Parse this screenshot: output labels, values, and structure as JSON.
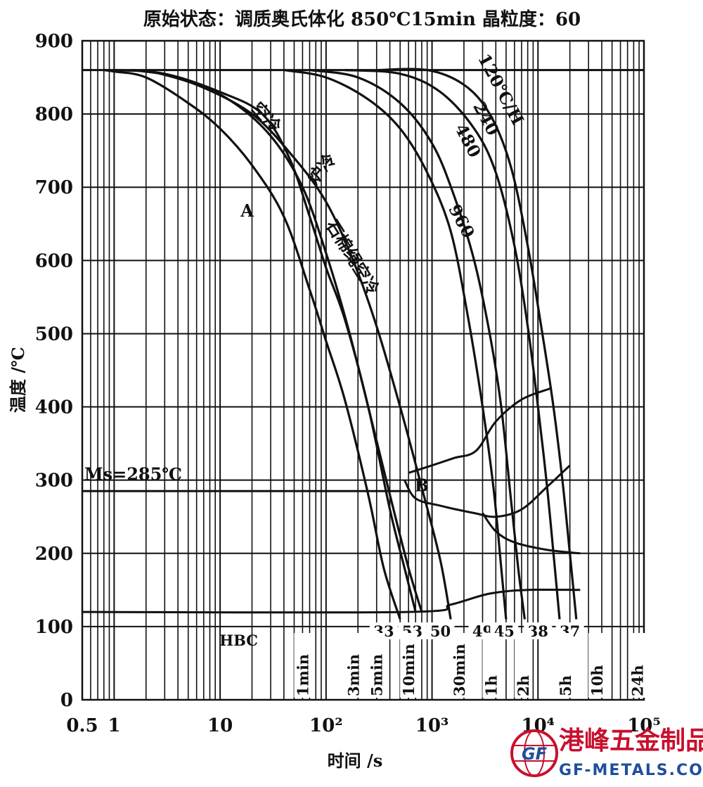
{
  "chart_data": {
    "type": "line",
    "title": "原始状态：调质奥氏体化 850℃15min 晶粒度：60",
    "xlabel": "时间 /s",
    "ylabel": "温度 /℃",
    "x_scale": "log",
    "xlim": [
      0.5,
      100000
    ],
    "ylim": [
      0,
      900
    ],
    "x_ticks": [
      {
        "value": 0.5,
        "label": "0.5"
      },
      {
        "value": 1,
        "label": "1"
      },
      {
        "value": 10,
        "label": "10"
      },
      {
        "value": 100,
        "label": "10²"
      },
      {
        "value": 1000,
        "label": "10³"
      },
      {
        "value": 10000,
        "label": "10⁴"
      },
      {
        "value": 100000,
        "label": "10⁵"
      }
    ],
    "y_ticks": [
      0,
      100,
      200,
      300,
      400,
      500,
      600,
      700,
      800,
      900
    ],
    "grid": true,
    "ms_label": "Ms=285℃",
    "ms_value": 285,
    "austenitize_line": 860,
    "region_labels": [
      {
        "text": "A",
        "x": 18,
        "y": 660
      },
      {
        "text": "B",
        "x": 800,
        "y": 285
      }
    ],
    "curve_labels": [
      {
        "text": "空冷",
        "x": 25,
        "y": 790,
        "rotate": 48
      },
      {
        "text": "炉冷",
        "x": 100,
        "y": 720,
        "rotate": -50
      },
      {
        "text": "石棉绳空冷",
        "x": 160,
        "y": 600,
        "rotate": 58
      },
      {
        "text": "960",
        "x": 1700,
        "y": 650,
        "rotate": 62
      },
      {
        "text": "480",
        "x": 1950,
        "y": 760,
        "rotate": 62
      },
      {
        "text": "240",
        "x": 2900,
        "y": 790,
        "rotate": 62
      },
      {
        "text": "120℃/H",
        "x": 4000,
        "y": 830,
        "rotate": 62
      }
    ],
    "series": [
      {
        "values": [
          [
            0.8,
            860
          ],
          [
            1,
            858
          ],
          [
            2,
            850
          ],
          [
            5,
            815
          ],
          [
            10,
            780
          ],
          [
            20,
            730
          ],
          [
            40,
            660
          ],
          [
            70,
            560
          ],
          [
            100,
            490
          ],
          [
            150,
            410
          ],
          [
            250,
            280
          ],
          [
            350,
            180
          ],
          [
            500,
            110
          ]
        ]
      },
      {
        "values": [
          [
            1,
            860
          ],
          [
            3,
            855
          ],
          [
            10,
            830
          ],
          [
            25,
            800
          ],
          [
            45,
            740
          ],
          [
            70,
            660
          ],
          [
            100,
            590
          ],
          [
            150,
            520
          ],
          [
            250,
            400
          ],
          [
            400,
            260
          ],
          [
            550,
            180
          ],
          [
            700,
            120
          ]
        ]
      },
      {
        "values": [
          [
            1.5,
            860
          ],
          [
            4,
            850
          ],
          [
            12,
            820
          ],
          [
            30,
            770
          ],
          [
            60,
            700
          ],
          [
            100,
            610
          ],
          [
            160,
            510
          ],
          [
            250,
            400
          ],
          [
            400,
            280
          ],
          [
            600,
            180
          ],
          [
            800,
            120
          ]
        ]
      },
      {
        "values": [
          [
            2,
            860
          ],
          [
            6,
            840
          ],
          [
            20,
            800
          ],
          [
            50,
            740
          ],
          [
            100,
            680
          ],
          [
            180,
            600
          ],
          [
            300,
            510
          ],
          [
            500,
            400
          ],
          [
            800,
            290
          ],
          [
            1200,
            190
          ],
          [
            1500,
            110
          ]
        ]
      },
      {
        "values": [
          [
            40,
            860
          ],
          [
            100,
            850
          ],
          [
            250,
            820
          ],
          [
            500,
            780
          ],
          [
            900,
            720
          ],
          [
            1500,
            640
          ],
          [
            2200,
            520
          ],
          [
            3000,
            400
          ],
          [
            3800,
            290
          ],
          [
            4500,
            180
          ],
          [
            5000,
            110
          ]
        ]
      },
      {
        "values": [
          [
            70,
            860
          ],
          [
            200,
            850
          ],
          [
            500,
            815
          ],
          [
            1000,
            760
          ],
          [
            1600,
            690
          ],
          [
            2500,
            600
          ],
          [
            3500,
            500
          ],
          [
            4500,
            400
          ],
          [
            5500,
            280
          ],
          [
            6500,
            180
          ],
          [
            7500,
            110
          ]
        ]
      },
      {
        "values": [
          [
            150,
            860
          ],
          [
            500,
            855
          ],
          [
            1200,
            830
          ],
          [
            2500,
            780
          ],
          [
            4000,
            720
          ],
          [
            6000,
            620
          ],
          [
            8000,
            510
          ],
          [
            10000,
            400
          ],
          [
            12000,
            300
          ],
          [
            14000,
            200
          ],
          [
            16000,
            110
          ]
        ]
      },
      {
        "values": [
          [
            300,
            860
          ],
          [
            900,
            860
          ],
          [
            2000,
            840
          ],
          [
            3500,
            800
          ],
          [
            5500,
            730
          ],
          [
            8000,
            620
          ],
          [
            11000,
            500
          ],
          [
            14000,
            400
          ],
          [
            17000,
            300
          ],
          [
            20000,
            200
          ],
          [
            23000,
            110
          ]
        ]
      }
    ],
    "transformation_lines": [
      {
        "values": [
          [
            600,
            310
          ],
          [
            900,
            318
          ],
          [
            1600,
            330
          ],
          [
            2600,
            340
          ],
          [
            4000,
            380
          ],
          [
            7000,
            410
          ],
          [
            13000,
            425
          ]
        ]
      },
      {
        "values": [
          [
            550,
            300
          ],
          [
            700,
            275
          ],
          [
            1200,
            265
          ],
          [
            2500,
            255
          ],
          [
            4000,
            250
          ],
          [
            7000,
            260
          ],
          [
            12000,
            290
          ],
          [
            20000,
            320
          ]
        ]
      },
      {
        "values": [
          [
            3000,
            255
          ],
          [
            4000,
            230
          ],
          [
            6000,
            215
          ],
          [
            12000,
            205
          ],
          [
            25000,
            200
          ]
        ]
      },
      {
        "values": [
          [
            0.5,
            120
          ],
          [
            600,
            120
          ],
          [
            1500,
            130
          ],
          [
            3500,
            145
          ],
          [
            8000,
            150
          ],
          [
            25000,
            150
          ]
        ]
      }
    ],
    "hardness_label": "HBC",
    "hardness_values": [
      {
        "text": "33",
        "x": 350
      },
      {
        "text": "53",
        "x": 650
      },
      {
        "text": "50",
        "x": 1200
      },
      {
        "text": "49",
        "x": 3000
      },
      {
        "text": "45",
        "x": 4800
      },
      {
        "text": "38",
        "x": 10000
      },
      {
        "text": "37",
        "x": 20000
      }
    ],
    "time_marks": [
      {
        "text": "1min",
        "x": 60
      },
      {
        "text": "3min",
        "x": 180
      },
      {
        "text": "5min",
        "x": 300
      },
      {
        "text": "10min",
        "x": 600
      },
      {
        "text": "30min",
        "x": 1800
      },
      {
        "text": "1h",
        "x": 3600
      },
      {
        "text": "2h",
        "x": 7200
      },
      {
        "text": "5h",
        "x": 18000
      },
      {
        "text": "10h",
        "x": 36000
      },
      {
        "text": "24h",
        "x": 86400
      }
    ]
  },
  "watermark": {
    "name_cn": "港峰五金制品",
    "site": "GF-METALS.COM",
    "emblem_text": "GF",
    "red": "#c8102e",
    "blue": "#1f4e9c"
  }
}
